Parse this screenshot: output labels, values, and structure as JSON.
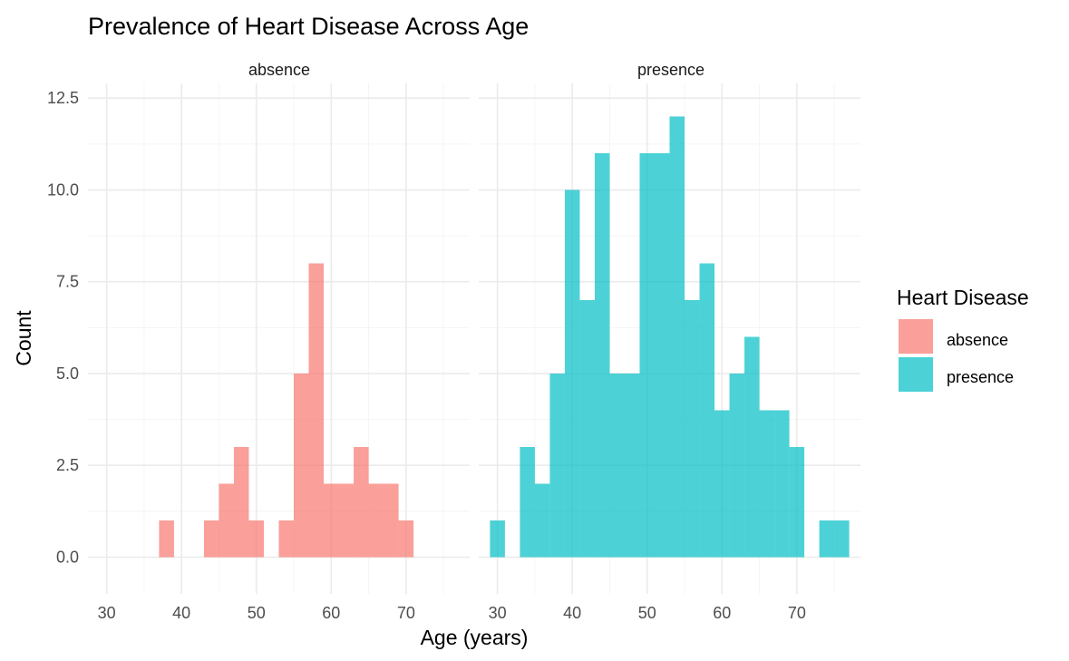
{
  "chart_data": {
    "type": "bar",
    "title": "Prevalence of Heart Disease Across Age",
    "xlabel": "Age (years)",
    "ylabel": "Count",
    "xlim": [
      27.5,
      78.5
    ],
    "ylim": [
      -1.0,
      12.9
    ],
    "x_ticks": [
      30,
      40,
      50,
      60,
      70
    ],
    "x_tick_labels": [
      "30",
      "40",
      "50",
      "60",
      "70"
    ],
    "y_ticks": [
      0,
      2.5,
      5,
      7.5,
      10,
      12.5
    ],
    "y_tick_labels": [
      "0.0",
      "2.5",
      "5.0",
      "7.5",
      "10.0",
      "12.5"
    ],
    "bin_width": 2,
    "grid": true,
    "legend": {
      "title": "Heart Disease",
      "position": "right",
      "entries": [
        {
          "label": "absence",
          "color": "#F8766D"
        },
        {
          "label": "presence",
          "color": "#00BFC4"
        }
      ]
    },
    "facets": [
      {
        "label": "absence",
        "color": "#F8766D",
        "bins": [
          {
            "x": 38,
            "count": 1
          },
          {
            "x": 44,
            "count": 1
          },
          {
            "x": 46,
            "count": 2
          },
          {
            "x": 48,
            "count": 3
          },
          {
            "x": 50,
            "count": 1
          },
          {
            "x": 54,
            "count": 1
          },
          {
            "x": 56,
            "count": 5
          },
          {
            "x": 58,
            "count": 8
          },
          {
            "x": 60,
            "count": 2
          },
          {
            "x": 62,
            "count": 2
          },
          {
            "x": 64,
            "count": 3
          },
          {
            "x": 66,
            "count": 2
          },
          {
            "x": 68,
            "count": 2
          },
          {
            "x": 70,
            "count": 1
          }
        ]
      },
      {
        "label": "presence",
        "color": "#00BFC4",
        "bins": [
          {
            "x": 30,
            "count": 1
          },
          {
            "x": 34,
            "count": 3
          },
          {
            "x": 36,
            "count": 2
          },
          {
            "x": 38,
            "count": 5
          },
          {
            "x": 40,
            "count": 10
          },
          {
            "x": 42,
            "count": 7
          },
          {
            "x": 44,
            "count": 11
          },
          {
            "x": 46,
            "count": 5
          },
          {
            "x": 48,
            "count": 5
          },
          {
            "x": 50,
            "count": 11
          },
          {
            "x": 52,
            "count": 11
          },
          {
            "x": 54,
            "count": 12
          },
          {
            "x": 56,
            "count": 7
          },
          {
            "x": 58,
            "count": 8
          },
          {
            "x": 60,
            "count": 4
          },
          {
            "x": 62,
            "count": 5
          },
          {
            "x": 64,
            "count": 6
          },
          {
            "x": 66,
            "count": 4
          },
          {
            "x": 68,
            "count": 4
          },
          {
            "x": 70,
            "count": 3
          },
          {
            "x": 74,
            "count": 1
          },
          {
            "x": 76,
            "count": 1
          }
        ]
      }
    ]
  }
}
